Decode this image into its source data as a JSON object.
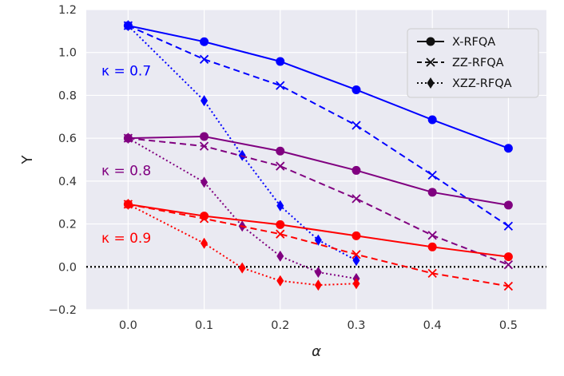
{
  "chart_data": {
    "type": "line",
    "title": "",
    "xlabel": "α",
    "ylabel": "Y",
    "xlim": [
      -0.055,
      0.55
    ],
    "ylim": [
      -0.2,
      1.2
    ],
    "xticks": [
      0.0,
      0.1,
      0.2,
      0.3,
      0.4,
      0.5
    ],
    "xtick_labels": [
      "0.0",
      "0.1",
      "0.2",
      "0.3",
      "0.4",
      "0.5"
    ],
    "yticks": [
      -0.2,
      0.0,
      0.2,
      0.4,
      0.6,
      0.8,
      1.0,
      1.2
    ],
    "ytick_labels": [
      "−0.2",
      "0.0",
      "0.2",
      "0.4",
      "0.6",
      "0.8",
      "1.0",
      "1.2"
    ],
    "grid": true,
    "reference_line": {
      "y": 0.0,
      "style": "dotted",
      "color": "#000000"
    },
    "legend": {
      "position": "top-right",
      "entries": [
        {
          "label": "X-RFQA",
          "style": "solid",
          "marker": "circle"
        },
        {
          "label": "ZZ-RFQA",
          "style": "dashed",
          "marker": "x"
        },
        {
          "label": "XZZ-RFQA",
          "style": "dotted",
          "marker": "diamond"
        }
      ]
    },
    "groups": [
      {
        "kappa_label": "κ = 0.7",
        "label_anchor": [
          -0.035,
          0.915
        ],
        "color": "#0000ff",
        "series": [
          {
            "name": "X-RFQA",
            "style": "solid",
            "marker": "circle",
            "x": [
              0.0,
              0.1,
              0.2,
              0.3,
              0.4,
              0.5
            ],
            "y": [
              1.125,
              1.05,
              0.958,
              0.826,
              0.686,
              0.553
            ]
          },
          {
            "name": "ZZ-RFQA",
            "style": "dashed",
            "marker": "x",
            "x": [
              0.0,
              0.1,
              0.2,
              0.3,
              0.4,
              0.5
            ],
            "y": [
              1.125,
              0.968,
              0.846,
              0.66,
              0.428,
              0.19
            ]
          },
          {
            "name": "XZZ-RFQA",
            "style": "dotted",
            "marker": "diamond",
            "x": [
              0.0,
              0.1,
              0.15,
              0.2,
              0.25,
              0.3
            ],
            "y": [
              1.125,
              0.775,
              0.52,
              0.285,
              0.125,
              0.03
            ]
          }
        ]
      },
      {
        "kappa_label": "κ = 0.8",
        "label_anchor": [
          -0.035,
          0.45
        ],
        "color": "#800080",
        "series": [
          {
            "name": "X-RFQA",
            "style": "solid",
            "marker": "circle",
            "x": [
              0.0,
              0.1,
              0.2,
              0.3,
              0.4,
              0.5
            ],
            "y": [
              0.6,
              0.608,
              0.54,
              0.45,
              0.348,
              0.288
            ]
          },
          {
            "name": "ZZ-RFQA",
            "style": "dashed",
            "marker": "x",
            "x": [
              0.0,
              0.1,
              0.2,
              0.3,
              0.4,
              0.5
            ],
            "y": [
              0.6,
              0.563,
              0.47,
              0.318,
              0.147,
              0.01
            ]
          },
          {
            "name": "XZZ-RFQA",
            "style": "dotted",
            "marker": "diamond",
            "x": [
              0.0,
              0.1,
              0.15,
              0.2,
              0.25,
              0.3
            ],
            "y": [
              0.6,
              0.395,
              0.19,
              0.05,
              -0.025,
              -0.055
            ]
          }
        ]
      },
      {
        "kappa_label": "κ = 0.9",
        "label_anchor": [
          -0.035,
          0.135
        ],
        "color": "#ff0000",
        "series": [
          {
            "name": "X-RFQA",
            "style": "solid",
            "marker": "circle",
            "x": [
              0.0,
              0.1,
              0.2,
              0.3,
              0.4,
              0.5
            ],
            "y": [
              0.292,
              0.237,
              0.197,
              0.145,
              0.093,
              0.047
            ]
          },
          {
            "name": "ZZ-RFQA",
            "style": "dashed",
            "marker": "x",
            "x": [
              0.0,
              0.1,
              0.2,
              0.3,
              0.4,
              0.5
            ],
            "y": [
              0.292,
              0.225,
              0.153,
              0.058,
              -0.03,
              -0.09
            ]
          },
          {
            "name": "XZZ-RFQA",
            "style": "dotted",
            "marker": "diamond",
            "x": [
              0.0,
              0.1,
              0.15,
              0.2,
              0.25,
              0.3
            ],
            "y": [
              0.292,
              0.11,
              -0.005,
              -0.065,
              -0.085,
              -0.078
            ]
          }
        ]
      }
    ]
  }
}
